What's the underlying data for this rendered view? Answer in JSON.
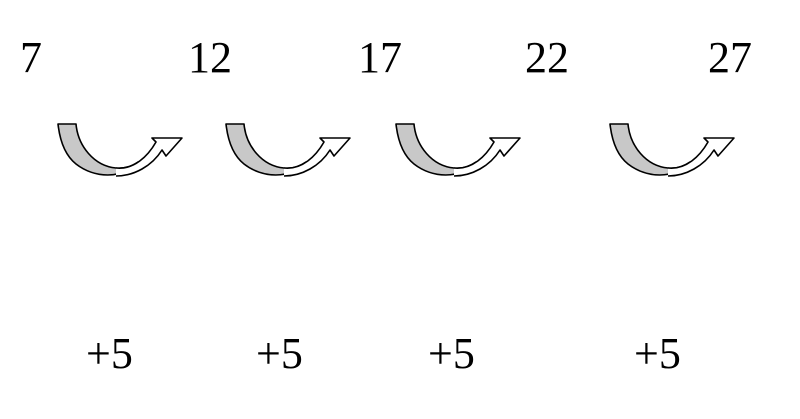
{
  "sequence": {
    "terms": [
      "7",
      "12",
      "17",
      "22",
      "27"
    ],
    "steps": [
      "+5",
      "+5",
      "+5",
      "+5"
    ]
  },
  "colors": {
    "arrow_fill": "#c8c8c8",
    "arrow_outline": "#000000",
    "text": "#000000"
  },
  "icons": {
    "step_arrow": "curved-up-arrow-icon"
  }
}
